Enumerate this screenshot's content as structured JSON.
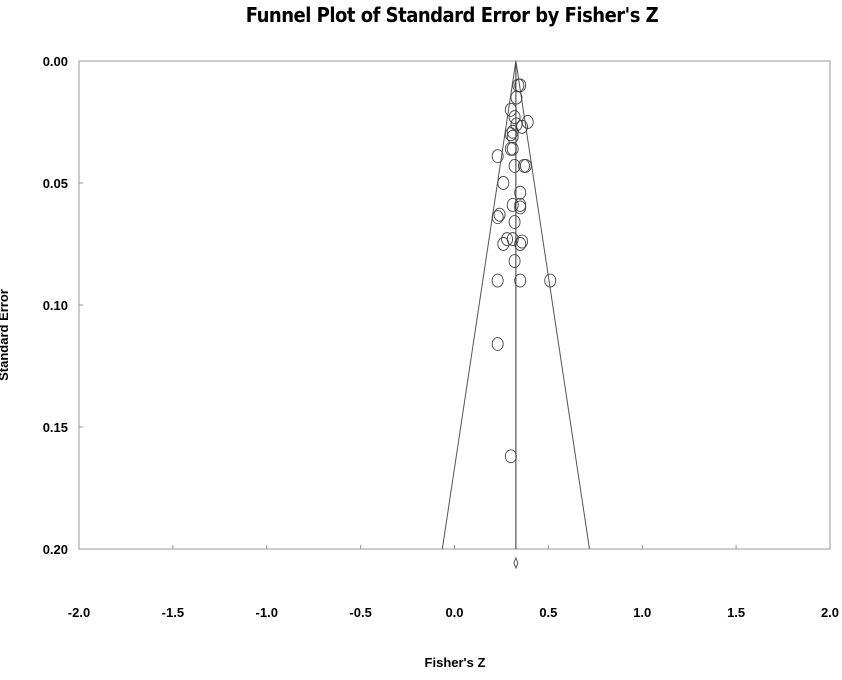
{
  "chart_data": {
    "type": "scatter",
    "title": "Funnel Plot of Standard Error by Fisher's Z",
    "xlabel": "Fisher's Z",
    "ylabel": "Standard Error",
    "x": [
      0.34,
      0.35,
      0.33,
      0.3,
      0.32,
      0.39,
      0.33,
      0.36,
      0.31,
      0.3,
      0.31,
      0.3,
      0.31,
      0.23,
      0.32,
      0.38,
      0.37,
      0.26,
      0.35,
      0.31,
      0.35,
      0.35,
      0.24,
      0.23,
      0.32,
      0.28,
      0.31,
      0.36,
      0.35,
      0.26,
      0.32,
      0.23,
      0.35,
      0.51,
      0.23,
      0.3
    ],
    "y": [
      0.01,
      0.01,
      0.015,
      0.02,
      0.023,
      0.025,
      0.026,
      0.027,
      0.029,
      0.03,
      0.031,
      0.036,
      0.036,
      0.039,
      0.043,
      0.043,
      0.043,
      0.05,
      0.054,
      0.059,
      0.059,
      0.06,
      0.063,
      0.064,
      0.066,
      0.073,
      0.073,
      0.074,
      0.075,
      0.075,
      0.082,
      0.09,
      0.09,
      0.09,
      0.116,
      0.162
    ],
    "combined_effect": 0.327,
    "xlim": [
      -2,
      2
    ],
    "xticks": [
      {
        "value": -2,
        "label": "-2.0"
      },
      -1.5,
      {
        "value": -1,
        "label": "-1.0"
      },
      -0.5,
      {
        "value": 0,
        "label": "0.0"
      },
      0.5,
      {
        "value": 1,
        "label": "1.0"
      },
      1.5,
      {
        "value": 2,
        "label": "2.0"
      }
    ],
    "ylim": [
      0,
      0.2
    ],
    "y_inverted": true,
    "yticks": [
      {
        "value": 0,
        "label": "0.00"
      },
      0.05,
      {
        "value": 0.1,
        "label": "0.10"
      },
      0.15,
      {
        "value": 0.2,
        "label": "0.20"
      }
    ],
    "color": "#444444"
  }
}
